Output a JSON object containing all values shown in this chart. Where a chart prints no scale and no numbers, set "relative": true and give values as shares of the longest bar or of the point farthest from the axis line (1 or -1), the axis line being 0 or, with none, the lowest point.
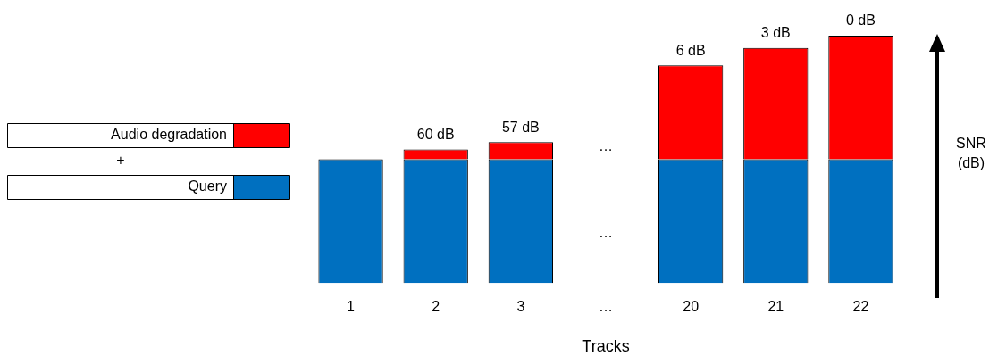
{
  "chart_data": {
    "type": "bar",
    "stacked": true,
    "relative": true,
    "xlabel": "Tracks",
    "ylabel": "SNR (dB)",
    "legend": "left",
    "grid": false,
    "categories": [
      "1",
      "2",
      "3",
      "…",
      "20",
      "21",
      "22"
    ],
    "series": [
      {
        "name": "Query",
        "color": "#0070c0",
        "values": [
          0.5,
          0.5,
          0.5,
          null,
          0.5,
          0.5,
          0.5
        ]
      },
      {
        "name": "Audio degradation",
        "color": "#ff0000",
        "values": [
          0,
          0.04,
          0.07,
          null,
          0.38,
          0.45,
          0.5
        ]
      }
    ],
    "annotations": [
      "+",
      "…",
      "…",
      {
        "text": "60 dB",
        "x": "2",
        "y": 0.54
      },
      {
        "text": "57 dB",
        "x": "3",
        "y": 0.57
      },
      {
        "text": "6 dB",
        "x": "20",
        "y": 0.88
      },
      {
        "text": "3 dB",
        "x": "21",
        "y": 0.95
      },
      {
        "text": "0 dB",
        "x": "22",
        "y": 1
      }
    ]
  }
}
